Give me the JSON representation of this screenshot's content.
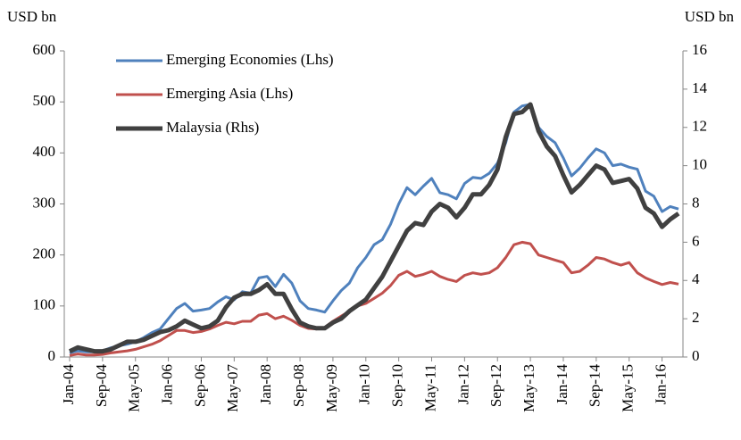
{
  "chart_data": {
    "type": "line",
    "y_label": "USD bn",
    "y2_label": "USD bn",
    "categories": [
      "Jan-04",
      null,
      null,
      null,
      "Sep-04",
      null,
      null,
      null,
      "May-05",
      null,
      null,
      null,
      "Jan-06",
      null,
      null,
      null,
      "Sep-06",
      null,
      null,
      null,
      "May-07",
      null,
      null,
      null,
      "Jan-08",
      null,
      null,
      null,
      "Sep-08",
      null,
      null,
      null,
      "May-09",
      null,
      null,
      null,
      "Jan-10",
      null,
      null,
      null,
      "Sep-10",
      null,
      null,
      null,
      "May-11",
      null,
      null,
      null,
      "Jan-12",
      null,
      null,
      null,
      "Sep-12",
      null,
      null,
      null,
      "May-13",
      null,
      null,
      null,
      "Jan-14",
      null,
      null,
      null,
      "Sep-14",
      null,
      null,
      null,
      "May-15",
      null,
      null,
      null,
      "Jan-16",
      null,
      null
    ],
    "series": [
      {
        "name": "Emerging Economies (Lhs)",
        "color": "#4f81bd",
        "axis": "y",
        "values": [
          8,
          12,
          10,
          10,
          12,
          18,
          22,
          25,
          30,
          38,
          48,
          55,
          75,
          95,
          105,
          90,
          92,
          95,
          108,
          118,
          112,
          128,
          125,
          155,
          158,
          138,
          162,
          145,
          110,
          95,
          92,
          88,
          110,
          130,
          145,
          175,
          195,
          220,
          230,
          260,
          300,
          332,
          318,
          335,
          350,
          322,
          318,
          310,
          340,
          352,
          350,
          360,
          380,
          420,
          480,
          492,
          495,
          450,
          432,
          420,
          390,
          355,
          370,
          390,
          408,
          400,
          375,
          378,
          372,
          368,
          325,
          315,
          285,
          295,
          290
        ]
      },
      {
        "name": "Emerging Asia (Lhs)",
        "color": "#c0504d",
        "axis": "y",
        "values": [
          3,
          6,
          4,
          4,
          5,
          8,
          10,
          12,
          15,
          20,
          25,
          32,
          42,
          52,
          52,
          48,
          50,
          55,
          62,
          68,
          65,
          70,
          70,
          82,
          85,
          75,
          80,
          72,
          62,
          56,
          55,
          58,
          70,
          80,
          90,
          100,
          105,
          115,
          125,
          140,
          160,
          168,
          158,
          162,
          168,
          158,
          152,
          148,
          160,
          165,
          162,
          165,
          175,
          195,
          220,
          225,
          222,
          200,
          195,
          190,
          185,
          165,
          168,
          180,
          195,
          192,
          185,
          180,
          185,
          165,
          155,
          148,
          142,
          146,
          143
        ]
      },
      {
        "name": "Malaysia (Rhs)",
        "color": "#404040",
        "axis": "y2",
        "values": [
          0.3,
          0.5,
          0.4,
          0.3,
          0.3,
          0.4,
          0.6,
          0.8,
          0.8,
          0.9,
          1.1,
          1.3,
          1.4,
          1.6,
          1.9,
          1.7,
          1.5,
          1.6,
          1.9,
          2.6,
          3.1,
          3.3,
          3.3,
          3.5,
          3.8,
          3.3,
          3.3,
          2.5,
          1.8,
          1.6,
          1.5,
          1.5,
          1.8,
          2.0,
          2.4,
          2.7,
          3.0,
          3.6,
          4.2,
          5.0,
          5.8,
          6.6,
          7.0,
          6.9,
          7.6,
          8.0,
          7.8,
          7.3,
          7.8,
          8.5,
          8.5,
          9.0,
          9.8,
          11.5,
          12.7,
          12.8,
          13.2,
          11.8,
          11.0,
          10.5,
          9.5,
          8.6,
          9.0,
          9.5,
          10.0,
          9.8,
          9.1,
          9.2,
          9.3,
          8.8,
          7.8,
          7.5,
          6.8,
          7.2,
          7.5
        ]
      }
    ],
    "ylim": [
      0,
      600
    ],
    "yticks": [
      0,
      100,
      200,
      300,
      400,
      500,
      600
    ],
    "y2lim": [
      0,
      16
    ],
    "y2ticks": [
      0,
      2,
      4,
      6,
      8,
      10,
      12,
      14,
      16
    ],
    "legend": "top-left"
  }
}
